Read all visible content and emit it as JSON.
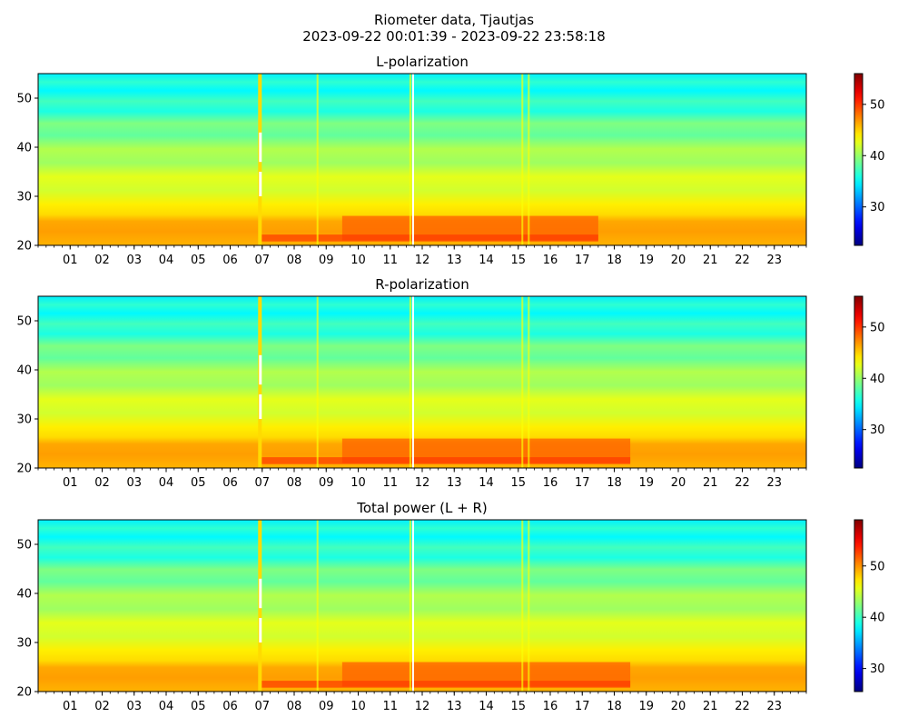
{
  "figure": {
    "title_line1": "Riometer data, Tjautjas",
    "title_line2": "2023-09-22 00:01:39 - 2023-09-22 23:58:18"
  },
  "chart_data": [
    {
      "type": "heatmap",
      "title": "L-polarization",
      "xlabel": "",
      "ylabel": "",
      "x_tick_labels": [
        "01",
        "02",
        "03",
        "04",
        "05",
        "06",
        "07",
        "08",
        "09",
        "10",
        "11",
        "12",
        "13",
        "14",
        "15",
        "16",
        "17",
        "18",
        "19",
        "20",
        "21",
        "22",
        "23"
      ],
      "xlim_hours": [
        0,
        24
      ],
      "ylim": [
        20,
        55
      ],
      "y_ticks": [
        20,
        30,
        40,
        50
      ],
      "colorbar": {
        "range": [
          22.5,
          56
        ],
        "ticks": [
          30,
          40,
          50
        ],
        "colormap": "jet"
      },
      "features": {
        "gaps_hours": [
          6.93,
          11.7
        ],
        "bright_spikes_hours": [
          8.7,
          11.6,
          15.1,
          15.3
        ],
        "enhanced_band_hours": [
          9.5,
          17.5
        ]
      }
    },
    {
      "type": "heatmap",
      "title": "R-polarization",
      "xlabel": "",
      "ylabel": "",
      "x_tick_labels": [
        "01",
        "02",
        "03",
        "04",
        "05",
        "06",
        "07",
        "08",
        "09",
        "10",
        "11",
        "12",
        "13",
        "14",
        "15",
        "16",
        "17",
        "18",
        "19",
        "20",
        "21",
        "22",
        "23"
      ],
      "xlim_hours": [
        0,
        24
      ],
      "ylim": [
        20,
        55
      ],
      "y_ticks": [
        20,
        30,
        40,
        50
      ],
      "colorbar": {
        "range": [
          22.5,
          56
        ],
        "ticks": [
          30,
          40,
          50
        ],
        "colormap": "jet"
      },
      "features": {
        "gaps_hours": [
          6.93,
          11.7
        ],
        "bright_spikes_hours": [
          8.7,
          11.6,
          15.1,
          15.3
        ],
        "enhanced_band_hours": [
          9.5,
          18.5
        ]
      }
    },
    {
      "type": "heatmap",
      "title": "Total power (L + R)",
      "xlabel": "",
      "ylabel": "",
      "x_tick_labels": [
        "01",
        "02",
        "03",
        "04",
        "05",
        "06",
        "07",
        "08",
        "09",
        "10",
        "11",
        "12",
        "13",
        "14",
        "15",
        "16",
        "17",
        "18",
        "19",
        "20",
        "21",
        "22",
        "23"
      ],
      "xlim_hours": [
        0,
        24
      ],
      "ylim": [
        20,
        55
      ],
      "y_ticks": [
        20,
        30,
        40,
        50
      ],
      "colorbar": {
        "range": [
          25.5,
          59
        ],
        "ticks": [
          30,
          40,
          50
        ],
        "colormap": "jet"
      },
      "features": {
        "gaps_hours": [
          6.93,
          11.7
        ],
        "bright_spikes_hours": [
          8.7,
          11.6,
          15.1,
          15.3
        ],
        "enhanced_band_hours": [
          9.5,
          18.5
        ]
      }
    }
  ]
}
